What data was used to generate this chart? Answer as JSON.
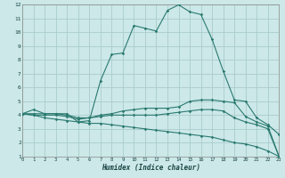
{
  "background_color": "#cce8e8",
  "grid_color": "#aacccc",
  "line_color": "#2a7a70",
  "xlabel": "Humidex (Indice chaleur)",
  "xlim": [
    0,
    23
  ],
  "ylim": [
    1,
    12
  ],
  "xticks": [
    0,
    1,
    2,
    3,
    4,
    5,
    6,
    7,
    8,
    9,
    10,
    11,
    12,
    13,
    14,
    15,
    16,
    17,
    18,
    19,
    20,
    21,
    22,
    23
  ],
  "yticks": [
    1,
    2,
    3,
    4,
    5,
    6,
    7,
    8,
    9,
    10,
    11,
    12
  ],
  "curve1_x": [
    0,
    1,
    2,
    3,
    4,
    5,
    6,
    7,
    8,
    9,
    10,
    11,
    12,
    13,
    14,
    15,
    16,
    17,
    18,
    19,
    20,
    21,
    22,
    23
  ],
  "curve1_y": [
    4.1,
    4.4,
    4.1,
    4.1,
    4.1,
    3.5,
    3.6,
    6.5,
    8.4,
    8.5,
    10.5,
    10.3,
    10.1,
    11.6,
    12.0,
    11.5,
    11.3,
    9.5,
    7.2,
    5.1,
    5.0,
    3.8,
    3.3,
    2.6
  ],
  "curve2_x": [
    0,
    1,
    2,
    3,
    4,
    5,
    6,
    7,
    8,
    9,
    10,
    11,
    12,
    13,
    14,
    15,
    16,
    17,
    18,
    19,
    20,
    21,
    22,
    23
  ],
  "curve2_y": [
    4.1,
    4.1,
    4.1,
    4.1,
    4.0,
    3.8,
    3.8,
    4.0,
    4.1,
    4.3,
    4.4,
    4.5,
    4.5,
    4.5,
    4.6,
    5.0,
    5.1,
    5.1,
    5.0,
    4.9,
    3.9,
    3.5,
    3.2,
    1.0
  ],
  "curve3_x": [
    0,
    1,
    2,
    3,
    4,
    5,
    6,
    7,
    8,
    9,
    10,
    11,
    12,
    13,
    14,
    15,
    16,
    17,
    18,
    19,
    20,
    21,
    22,
    23
  ],
  "curve3_y": [
    4.1,
    4.0,
    4.0,
    4.0,
    3.9,
    3.7,
    3.8,
    3.9,
    4.0,
    4.0,
    4.0,
    4.0,
    4.0,
    4.1,
    4.2,
    4.3,
    4.4,
    4.4,
    4.3,
    3.8,
    3.5,
    3.3,
    3.0,
    1.0
  ],
  "curve4_x": [
    0,
    1,
    2,
    3,
    4,
    5,
    6,
    7,
    8,
    9,
    10,
    11,
    12,
    13,
    14,
    15,
    16,
    17,
    18,
    19,
    20,
    21,
    22,
    23
  ],
  "curve4_y": [
    4.1,
    4.0,
    3.8,
    3.7,
    3.6,
    3.5,
    3.4,
    3.4,
    3.3,
    3.2,
    3.1,
    3.0,
    2.9,
    2.8,
    2.7,
    2.6,
    2.5,
    2.4,
    2.2,
    2.0,
    1.9,
    1.7,
    1.4,
    1.0
  ]
}
